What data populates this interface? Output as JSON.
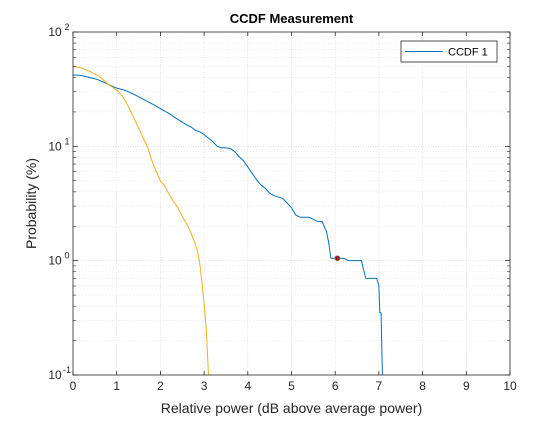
{
  "chart_data": {
    "type": "line",
    "title": "CCDF Measurement",
    "xlabel": "Relative power (dB above average power)",
    "ylabel": "Probability (%)",
    "xlim": [
      0,
      10
    ],
    "ylim": [
      0.1,
      100
    ],
    "yscale": "log",
    "grid": true,
    "minor_grid": true,
    "legend_position": "top-right",
    "x_ticks": [
      "0",
      "1",
      "2",
      "3",
      "4",
      "5",
      "6",
      "7",
      "8",
      "9",
      "10"
    ],
    "y_ticks": [
      {
        "base": "10",
        "exp": "-1",
        "value": 0.1
      },
      {
        "base": "10",
        "exp": "0",
        "value": 1
      },
      {
        "base": "10",
        "exp": "1",
        "value": 10
      },
      {
        "base": "10",
        "exp": "2",
        "value": 100
      }
    ],
    "series": [
      {
        "name": "CCDF 1",
        "color": "#0072BD",
        "x": [
          0,
          0.1,
          0.2,
          0.3,
          0.4,
          0.5,
          0.6,
          0.7,
          0.8,
          0.9,
          1.0,
          1.1,
          1.2,
          1.3,
          1.4,
          1.5,
          1.6,
          1.7,
          1.8,
          1.9,
          2.0,
          2.1,
          2.2,
          2.3,
          2.4,
          2.5,
          2.6,
          2.7,
          2.8,
          2.9,
          3.0,
          3.1,
          3.2,
          3.3,
          3.4,
          3.5,
          3.6,
          3.7,
          3.8,
          3.9,
          4.0,
          4.1,
          4.2,
          4.3,
          4.4,
          4.5,
          4.6,
          4.7,
          4.8,
          4.9,
          5.0,
          5.1,
          5.2,
          5.3,
          5.4,
          5.5,
          5.6,
          5.7,
          5.8,
          5.85,
          5.9,
          6.0,
          6.1,
          6.2,
          6.3,
          6.4,
          6.5,
          6.6,
          6.7,
          6.8,
          6.9,
          6.95,
          7.0,
          7.02,
          7.05,
          7.08
        ],
        "y": [
          42,
          42,
          41.5,
          40.8,
          39.8,
          39,
          37.9,
          36.5,
          35,
          33.5,
          32.3,
          31.6,
          30.8,
          29.6,
          28.4,
          27.2,
          25.9,
          24.7,
          23.6,
          22.5,
          21.4,
          20.3,
          19.4,
          18.2,
          17.2,
          16.3,
          15.4,
          14.8,
          13.8,
          13.4,
          12.7,
          11.8,
          11.0,
          10.0,
          9.7,
          9.7,
          9.6,
          9.0,
          8.1,
          7.5,
          6.6,
          5.8,
          5.1,
          4.6,
          4.3,
          3.9,
          3.7,
          3.6,
          3.5,
          3.2,
          2.9,
          2.5,
          2.4,
          2.4,
          2.4,
          2.3,
          2.2,
          2.2,
          1.8,
          1.45,
          1.05,
          1.05,
          1.05,
          1.05,
          1.0,
          1.0,
          1.0,
          1.0,
          0.7,
          0.7,
          0.7,
          0.7,
          0.6,
          0.35,
          0.35,
          0.1
        ]
      },
      {
        "name": "",
        "color": "#EDB120",
        "x": [
          0,
          0.2,
          0.4,
          0.5,
          0.6,
          0.7,
          0.8,
          0.9,
          1.0,
          1.1,
          1.2,
          1.3,
          1.4,
          1.5,
          1.6,
          1.7,
          1.8,
          1.9,
          2.0,
          2.1,
          2.2,
          2.3,
          2.4,
          2.5,
          2.6,
          2.7,
          2.75,
          2.8,
          2.85,
          2.9,
          2.95,
          3.0,
          3.05,
          3.1
        ],
        "y": [
          50,
          48.5,
          45,
          43,
          41,
          38,
          35,
          33,
          31,
          28.5,
          25,
          21,
          17.5,
          14.5,
          12,
          10,
          7.6,
          6.1,
          5.0,
          4.5,
          3.8,
          3.3,
          2.9,
          2.45,
          2.1,
          1.75,
          1.55,
          1.4,
          1.2,
          0.95,
          0.65,
          0.42,
          0.25,
          0.1
        ]
      }
    ],
    "marker": {
      "x": 6.05,
      "y": 1.05,
      "color": "#A2142F"
    }
  }
}
